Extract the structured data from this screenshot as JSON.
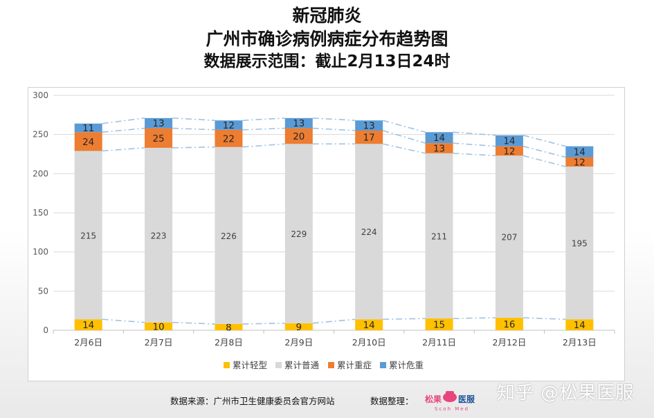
{
  "title": {
    "line1": "新冠肺炎",
    "line2": "广州市确诊病例病症分布趋势图",
    "line3": "数据展示范围：截止2月13日24时"
  },
  "footer": {
    "source": "数据来源：广州市卫生健康委员会官方网站",
    "organizer": "数据整理：",
    "logo_text": "松果医服",
    "logo_subtext": "Scoh Med",
    "watermark": "知乎 @松果医服"
  },
  "colors": {
    "mild": "#FFC000",
    "normal": "#D9D9D9",
    "severe": "#ED7D31",
    "critical": "#5B9BD5",
    "trend": "#9DC3E6"
  },
  "chart_data": {
    "type": "bar",
    "stacked": true,
    "categories": [
      "2月6日",
      "2月7日",
      "2月8日",
      "2月9日",
      "2月10日",
      "2月11日",
      "2月12日",
      "2月13日"
    ],
    "series": [
      {
        "name": "累计轻型",
        "values": [
          14,
          10,
          8,
          9,
          14,
          15,
          16,
          14
        ]
      },
      {
        "name": "累计普通",
        "values": [
          215,
          223,
          226,
          229,
          224,
          211,
          207,
          195
        ]
      },
      {
        "name": "累计重症",
        "values": [
          24,
          25,
          22,
          20,
          17,
          13,
          12,
          12
        ]
      },
      {
        "name": "累计危重",
        "values": [
          11,
          13,
          12,
          13,
          13,
          14,
          14,
          14
        ]
      }
    ],
    "ylim": [
      0,
      300
    ],
    "yticks": [
      0,
      50,
      100,
      150,
      200,
      250,
      300
    ],
    "grid": true,
    "legend": "bottom"
  }
}
